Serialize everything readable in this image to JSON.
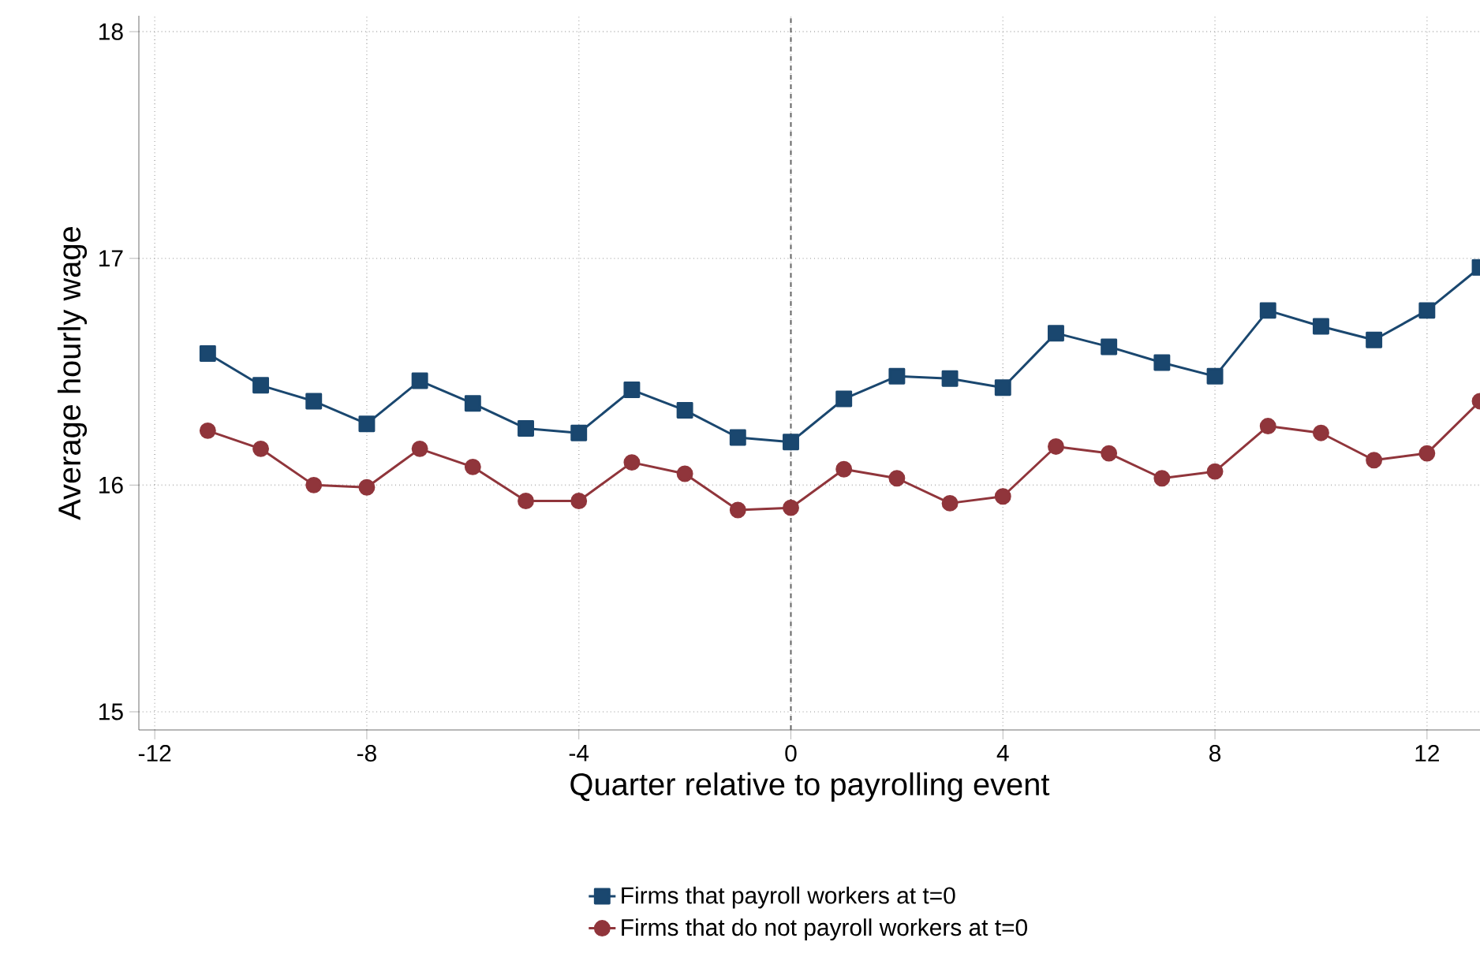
{
  "chart_data": {
    "type": "line",
    "xlabel": "Quarter relative to payrolling event",
    "ylabel": "Average hourly wage",
    "x": [
      -11,
      -10,
      -9,
      -8,
      -7,
      -6,
      -5,
      -4,
      -3,
      -2,
      -1,
      0,
      1,
      2,
      3,
      4,
      5,
      6,
      7,
      8,
      9,
      10,
      11,
      12,
      13
    ],
    "series": [
      {
        "name": "Firms that payroll workers at t=0",
        "color": "#1a476f",
        "marker": "square",
        "values": [
          16.58,
          16.44,
          16.37,
          16.27,
          16.46,
          16.36,
          16.25,
          16.23,
          16.42,
          16.33,
          16.21,
          16.19,
          16.38,
          16.48,
          16.47,
          16.43,
          16.67,
          16.61,
          16.54,
          16.48,
          16.77,
          16.7,
          16.64,
          16.77,
          16.96
        ]
      },
      {
        "name": "Firms that do not payroll workers at t=0",
        "color": "#90353b",
        "marker": "circle",
        "values": [
          16.24,
          16.16,
          16.0,
          15.99,
          16.16,
          16.08,
          15.93,
          15.93,
          16.1,
          16.05,
          15.89,
          15.9,
          16.07,
          16.03,
          15.92,
          15.95,
          16.17,
          16.14,
          16.03,
          16.06,
          16.26,
          16.23,
          16.11,
          16.14,
          16.37
        ]
      }
    ],
    "xlim": [
      -12.3,
      13
    ],
    "ylim": [
      14.92,
      18.07
    ],
    "xticks": [
      -12,
      -8,
      -4,
      0,
      4,
      8,
      12
    ],
    "yticks": [
      15,
      16,
      17,
      18
    ],
    "ref_lines": [
      {
        "axis": "x",
        "value": 0,
        "color": "#666666",
        "line_style": "dashed"
      }
    ],
    "grid": true,
    "legend": "bottom",
    "line_style": "solid"
  }
}
